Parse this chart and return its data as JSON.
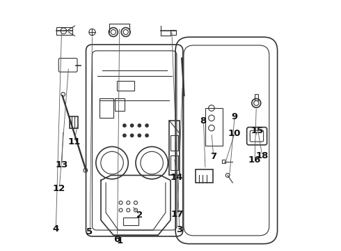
{
  "bg_color": "#ffffff",
  "line_color": "#333333",
  "label_fontsize": 9.5,
  "callouts": {
    "1": [
      0.295,
      0.038,
      0.295,
      0.068
    ],
    "2": [
      0.375,
      0.14,
      0.345,
      0.178
    ],
    "3": [
      0.535,
      0.082,
      0.505,
      0.882
    ],
    "4": [
      0.038,
      0.083,
      0.062,
      0.878
    ],
    "5": [
      0.175,
      0.073,
      0.185,
      0.862
    ],
    "6": [
      0.285,
      0.042,
      0.295,
      0.895
    ],
    "7": [
      0.672,
      0.375,
      0.665,
      0.47
    ],
    "8": [
      0.632,
      0.518,
      0.64,
      0.325
    ],
    "9": [
      0.757,
      0.536,
      0.737,
      0.295
    ],
    "10": [
      0.757,
      0.468,
      0.722,
      0.355
    ],
    "11": [
      0.112,
      0.433,
      0.128,
      0.513
    ],
    "12": [
      0.052,
      0.248,
      0.09,
      0.735
    ],
    "13": [
      0.062,
      0.342,
      0.068,
      0.48
    ],
    "14": [
      0.525,
      0.292,
      0.515,
      0.37
    ],
    "15": [
      0.848,
      0.478,
      0.845,
      0.455
    ],
    "16": [
      0.838,
      0.362,
      0.845,
      0.575
    ],
    "17": [
      0.527,
      0.142,
      0.548,
      0.66
    ],
    "18": [
      0.868,
      0.378,
      0.848,
      0.5
    ]
  }
}
